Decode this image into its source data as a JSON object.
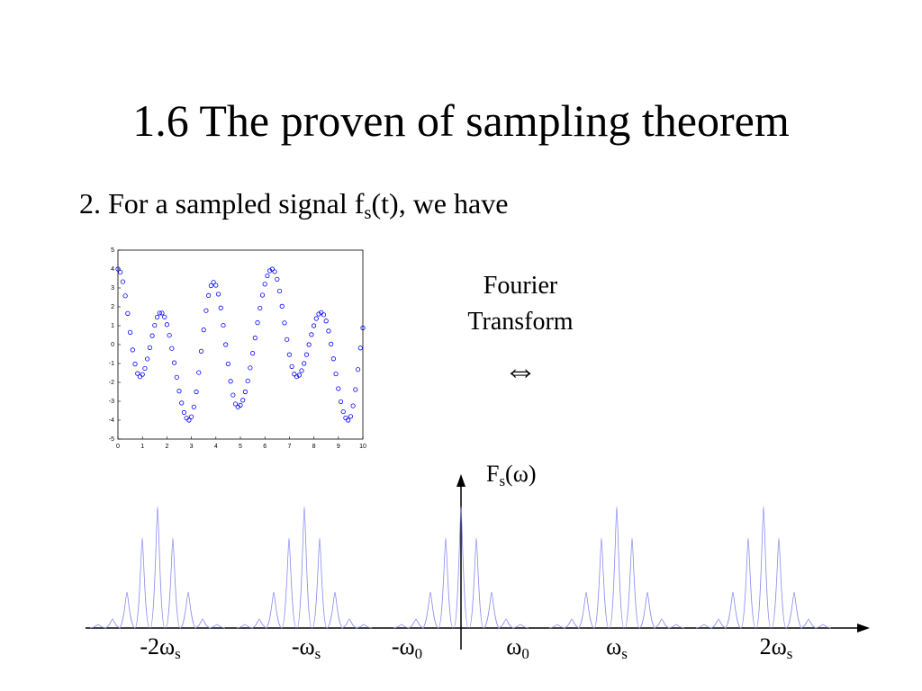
{
  "title": "1.6 The proven of sampling theorem",
  "bullet": {
    "before": "2. For a sampled signal f",
    "sub": "s",
    "after": "(t), we have"
  },
  "transform": {
    "line1": "Fourier",
    "line2": "Transform",
    "symbol": "⇔"
  },
  "spectrum": {
    "axis_label": {
      "base": "F",
      "sub": "s",
      "after": "(ω)"
    },
    "x_labels": [
      {
        "base": "-2ω",
        "sub": "s"
      },
      {
        "base": "-ω",
        "sub": "s"
      },
      {
        "base": "-ω",
        "sub": "0"
      },
      {
        "base": "ω",
        "sub": "0"
      },
      {
        "base": "ω",
        "sub": "s"
      },
      {
        "base": "2ω",
        "sub": "s"
      }
    ]
  },
  "chart_data": {
    "type": "scatter",
    "color": "#0000ff",
    "x": [
      0,
      0.1,
      0.2,
      0.3,
      0.4,
      0.5,
      0.6,
      0.7,
      0.8,
      0.9,
      1,
      1.1,
      1.2,
      1.3,
      1.4,
      1.5,
      1.6,
      1.7,
      1.8,
      1.9,
      2,
      2.1,
      2.2,
      2.3,
      2.4,
      2.5,
      2.6,
      2.7,
      2.8,
      2.9,
      3,
      3.1,
      3.2,
      3.3,
      3.4,
      3.5,
      3.6,
      3.7,
      3.8,
      3.9,
      4,
      4.1,
      4.2,
      4.3,
      4.4,
      4.5,
      4.6,
      4.7,
      4.8,
      4.9,
      5,
      5.1,
      5.2,
      5.3,
      5.4,
      5.5,
      5.6,
      5.7,
      5.8,
      5.9,
      6,
      6.1,
      6.2,
      6.3,
      6.4,
      6.5,
      6.6,
      6.7,
      6.8,
      6.9,
      7,
      7.1,
      7.2,
      7.3,
      7.4,
      7.5,
      7.6,
      7.7,
      7.8,
      7.9,
      8,
      8.1,
      8.2,
      8.3,
      8.4,
      8.5,
      8.6,
      8.7,
      8.8,
      8.9,
      9,
      9.1,
      9.2,
      9.3,
      9.4,
      9.5,
      9.6,
      9.7,
      9.8,
      9.9,
      10
    ],
    "values": [
      4,
      3.83,
      3.33,
      2.58,
      1.65,
      0.65,
      -0.28,
      -1.03,
      -1.53,
      -1.7,
      -1.58,
      -1.26,
      -0.76,
      -0.16,
      0.47,
      1.02,
      1.45,
      1.67,
      1.67,
      1.46,
      1.06,
      0.49,
      -0.2,
      -0.96,
      -1.73,
      -2.46,
      -3.09,
      -3.59,
      -3.89,
      -4,
      -3.82,
      -3.3,
      -2.5,
      -1.48,
      -0.35,
      0.78,
      1.8,
      2.6,
      3.12,
      3.3,
      3.14,
      2.67,
      1.94,
      1.02,
      0,
      -1.02,
      -1.94,
      -2.67,
      -3.14,
      -3.3,
      -3.21,
      -2.94,
      -2.5,
      -1.92,
      -1.23,
      -0.46,
      0.35,
      1.16,
      1.93,
      2.62,
      3.2,
      3.64,
      3.91,
      4,
      3.86,
      3.46,
      2.83,
      2.03,
      1.15,
      0.27,
      -0.53,
      -1.16,
      -1.56,
      -1.7,
      -1.62,
      -1.38,
      -1,
      -0.53,
      0,
      0.53,
      1,
      1.38,
      1.62,
      1.7,
      1.58,
      1.25,
      0.72,
      0.03,
      -0.75,
      -1.55,
      -2.33,
      -3.02,
      -3.55,
      -3.88,
      -4,
      -3.8,
      -3.24,
      -2.38,
      -1.32,
      -0.18,
      0.88
    ],
    "xlim": [
      0,
      10
    ],
    "xticks": [
      0,
      1,
      2,
      3,
      4,
      5,
      6,
      7,
      8,
      9,
      10
    ],
    "ylim": [
      -5,
      5
    ],
    "yticks": [
      -5,
      -4,
      -3,
      -2,
      -1,
      0,
      1,
      2,
      3,
      4,
      5
    ]
  }
}
